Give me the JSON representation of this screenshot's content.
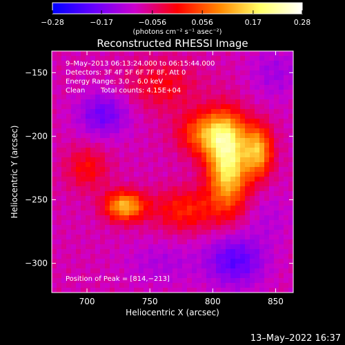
{
  "chart_data": {
    "type": "heatmap",
    "title": "Reconstructed RHESSI Image",
    "xlabel": "Heliocentric X (arcsec)",
    "ylabel": "Heliocentric Y (arcsec)",
    "xlim": [
      672,
      864
    ],
    "ylim": [
      -323,
      -133
    ],
    "x_ticks": [
      700,
      750,
      800,
      850
    ],
    "y_ticks": [
      -150,
      -200,
      -250,
      -300
    ],
    "x_tick_labels": [
      "700",
      "750",
      "800",
      "850"
    ],
    "y_tick_labels": [
      "−150",
      "−200",
      "−250",
      "−300"
    ],
    "colorbar": {
      "range": [
        -0.28,
        0.28
      ],
      "ticks": [
        -0.28,
        -0.17,
        -0.056,
        0.056,
        0.17,
        0.28
      ],
      "tick_labels": [
        "−0.28",
        "−0.17",
        "−0.056",
        "0.056",
        "0.17",
        "0.28"
      ],
      "units": "(photons cm⁻² s⁻¹ asec⁻²)",
      "colors": [
        "#0000ff",
        "#6a00ff",
        "#cc00cc",
        "#ff0000",
        "#ff8800",
        "#ffff66",
        "#ffffff"
      ]
    },
    "annotations": [
      "9–May–2013 06:13:24.000 to 06:15:44.000",
      "Detectors: 3F 4F 5F 6F 7F 8F, Att 0",
      "Energy Range: 3.0 – 6.0 keV",
      "Clean",
      "Total counts: 4.15E+04",
      "Position of Peak = [814,−213]"
    ],
    "sources": [
      {
        "x": 730,
        "y": -255,
        "amp": 0.21,
        "sx": 11,
        "sy": 8
      },
      {
        "x": 812,
        "y": -222,
        "amp": 0.27,
        "sx": 11,
        "sy": 24
      },
      {
        "x": 836,
        "y": -212,
        "amp": 0.2,
        "sx": 8,
        "sy": 14
      },
      {
        "x": 798,
        "y": -198,
        "amp": 0.18,
        "sx": 16,
        "sy": 12
      },
      {
        "x": 778,
        "y": -258,
        "amp": 0.1,
        "sx": 18,
        "sy": 12
      },
      {
        "x": 700,
        "y": -225,
        "amp": 0.08,
        "sx": 12,
        "sy": 12
      },
      {
        "x": 760,
        "y": -160,
        "amp": 0.07,
        "sx": 20,
        "sy": 14
      },
      {
        "x": 713,
        "y": -183,
        "amp": -0.1,
        "sx": 14,
        "sy": 12
      },
      {
        "x": 818,
        "y": -298,
        "amp": -0.12,
        "sx": 16,
        "sy": 14
      },
      {
        "x": 760,
        "y": -300,
        "amp": -0.04,
        "sx": 20,
        "sy": 12
      },
      {
        "x": 850,
        "y": -150,
        "amp": -0.05,
        "sx": 14,
        "sy": 14
      },
      {
        "x": 845,
        "y": -265,
        "amp": -0.03,
        "sx": 12,
        "sy": 14
      }
    ]
  },
  "footer": {
    "timestamp": "13–May–2022 16:37"
  }
}
